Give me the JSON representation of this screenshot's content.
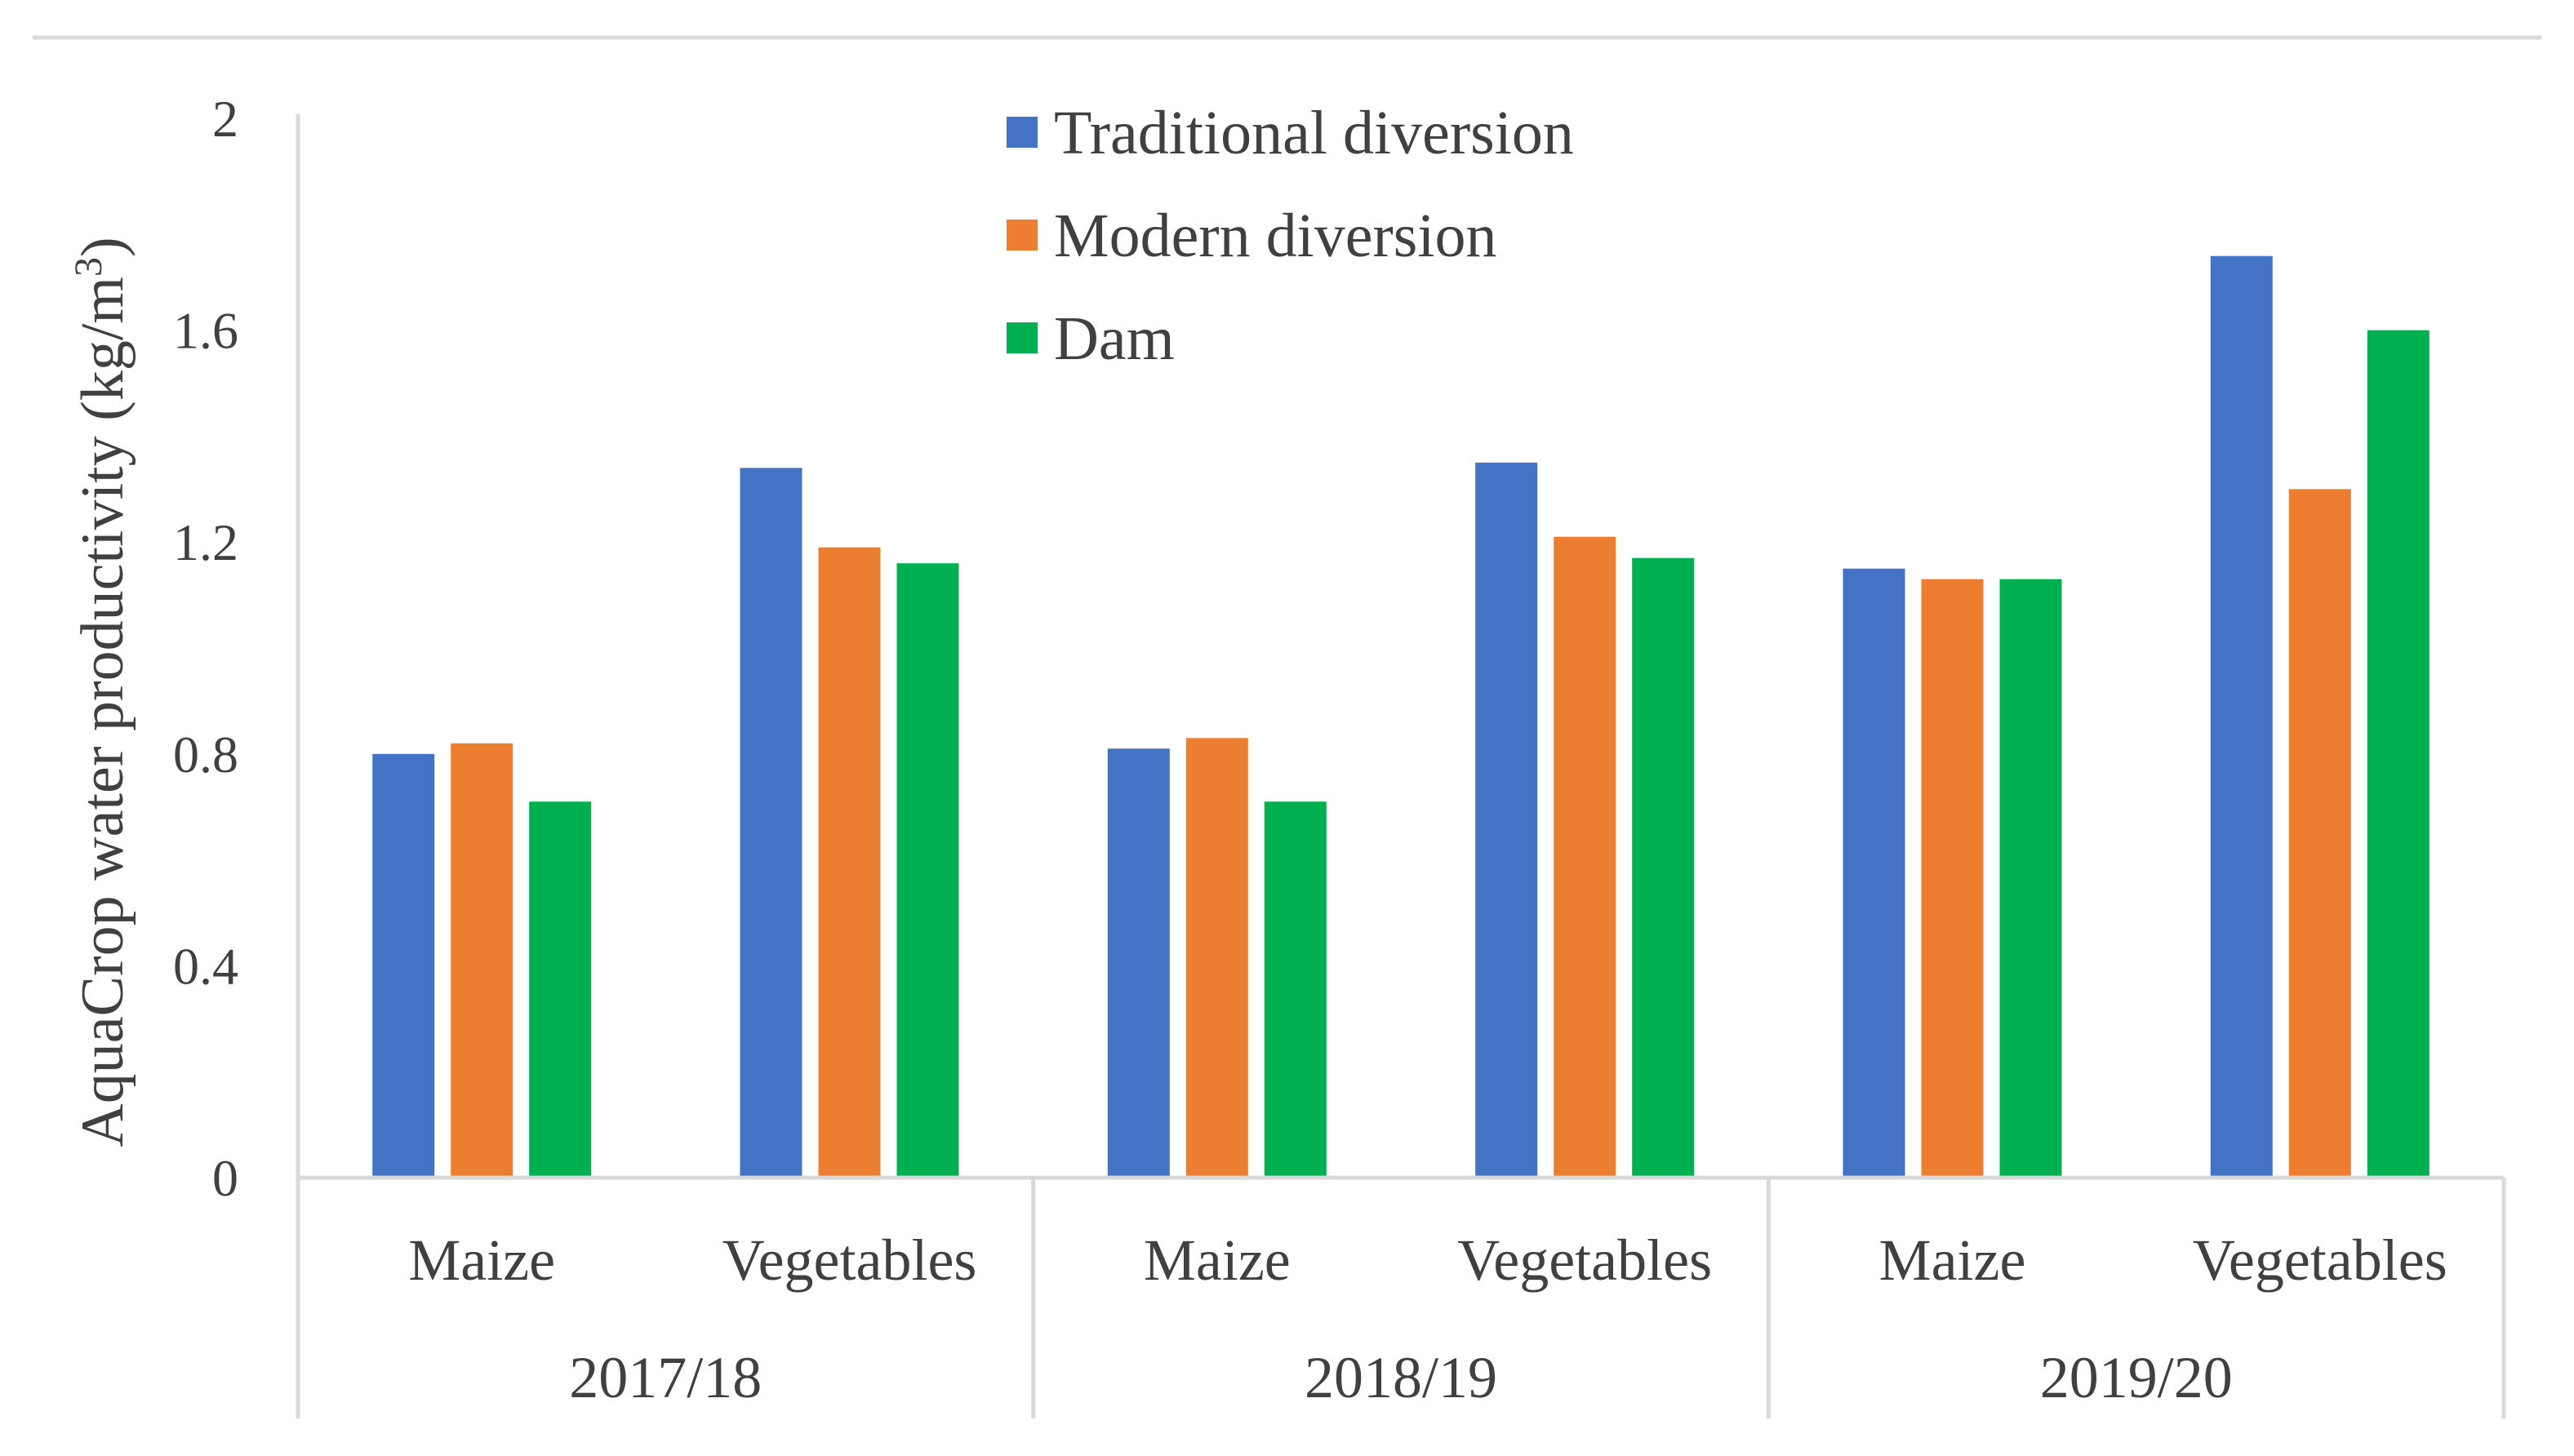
{
  "chart_data": {
    "type": "bar",
    "groups": [
      "2017/18",
      "2018/19",
      "2019/20"
    ],
    "categories": [
      "Maize",
      "Vegetables",
      "Maize",
      "Vegetables",
      "Maize",
      "Vegetables"
    ],
    "series": [
      {
        "name": "Traditional diversion",
        "color": "#4472C4",
        "values": [
          0.8,
          1.34,
          0.81,
          1.35,
          1.15,
          1.74
        ]
      },
      {
        "name": "Modern diversion",
        "color": "#ED7D31",
        "values": [
          0.82,
          1.19,
          0.83,
          1.21,
          1.13,
          1.3
        ]
      },
      {
        "name": "Dam",
        "color": "#00B050",
        "values": [
          0.71,
          1.16,
          0.71,
          1.17,
          1.13,
          1.6
        ]
      }
    ],
    "yticks": [
      "0",
      "0.4",
      "0.8",
      "1.2",
      "1.6",
      "2"
    ],
    "ylim": [
      0,
      2
    ],
    "ylabel": "AquaCrop water productivity (kg/m",
    "ylabel_sup": "3",
    "ylabel_end": ")",
    "xlabel": "",
    "title": "",
    "legend_position": "top-center"
  }
}
